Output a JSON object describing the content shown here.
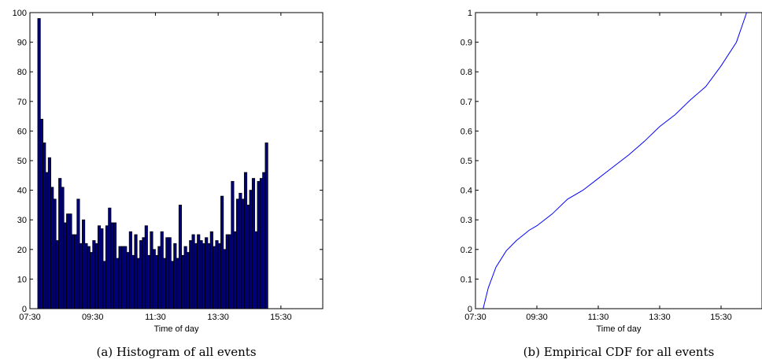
{
  "charts": [
    {
      "chart_data": {
        "type": "bar",
        "xlabel": "Time of day",
        "ylabel": "",
        "xlim": [
          "07:30",
          "16:50"
        ],
        "ylim": [
          0,
          100
        ],
        "yticks": [
          0,
          10,
          20,
          30,
          40,
          50,
          60,
          70,
          80,
          90,
          100
        ],
        "xticks": [
          "07:30",
          "09:30",
          "11:30",
          "13:30",
          "15:30"
        ],
        "bin_start": "07:45",
        "bin_width_minutes": 5,
        "values": [
          98,
          64,
          56,
          46,
          51,
          41,
          37,
          23,
          44,
          41,
          29,
          32,
          32,
          25,
          25,
          37,
          22,
          30,
          22,
          21,
          19,
          23,
          22,
          28,
          27,
          16,
          28,
          34,
          29,
          29,
          17,
          21,
          21,
          21,
          19,
          26,
          18,
          25,
          17,
          23,
          24,
          28,
          18,
          26,
          20,
          18,
          21,
          26,
          17,
          24,
          24,
          16,
          22,
          17,
          35,
          18,
          21,
          19,
          23,
          25,
          22,
          25,
          23,
          22,
          24,
          22,
          26,
          21,
          23,
          22,
          38,
          20,
          25,
          25,
          43,
          26,
          37,
          39,
          37,
          46,
          35,
          40,
          44,
          26,
          43,
          44,
          46,
          56
        ],
        "grid": false,
        "bar_color": "#00007f"
      },
      "caption": "(a) Histogram of all events"
    },
    {
      "chart_data": {
        "type": "line",
        "xlabel": "Time of day",
        "ylabel": "",
        "xlim": [
          "07:30",
          "16:50"
        ],
        "ylim": [
          0,
          1
        ],
        "yticks": [
          "0",
          "0.1",
          "0.2",
          "0.3",
          "0.4",
          "0.5",
          "0.6",
          "0.7",
          "0.8",
          "0.9",
          "1"
        ],
        "xticks": [
          "07:30",
          "09:30",
          "11:30",
          "13:30",
          "15:30"
        ],
        "series": [
          {
            "x": [
              "07:45",
              "07:55",
              "08:10",
              "08:30",
              "08:50",
              "09:15",
              "09:30",
              "10:00",
              "10:30",
              "11:00",
              "11:30",
              "12:00",
              "12:30",
              "13:00",
              "13:30",
              "14:00",
              "14:30",
              "15:00",
              "15:30",
              "16:00",
              "16:20"
            ],
            "y": [
              0,
              0.07,
              0.14,
              0.195,
              0.23,
              0.265,
              0.28,
              0.32,
              0.37,
              0.4,
              0.44,
              0.48,
              0.52,
              0.565,
              0.615,
              0.655,
              0.705,
              0.75,
              0.82,
              0.9,
              1.0
            ],
            "color": "#0000ff"
          }
        ],
        "grid": false
      },
      "caption": "(b) Empirical CDF for all events"
    }
  ]
}
